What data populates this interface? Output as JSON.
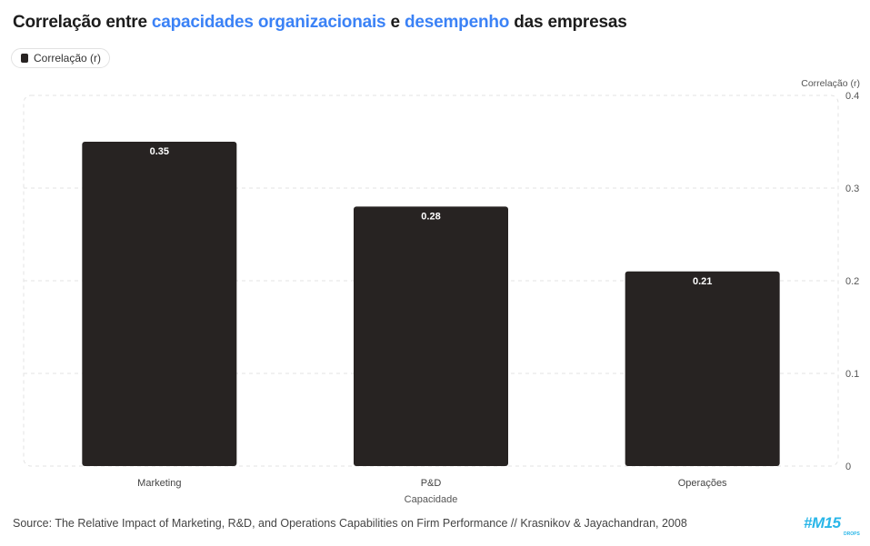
{
  "title": {
    "part1": "Correlação entre ",
    "highlight1": "capacidades organizacionais",
    "part2": " e ",
    "highlight2": "desempenho",
    "part3": " das empresas"
  },
  "legend": {
    "label": "Correlação (r)"
  },
  "source": "Source: The Relative Impact of Marketing, R&D, and Operations Capabilities on Firm Performance // Krasnikov & Jayachandran, 2008",
  "logo": {
    "text": "#M15",
    "sub": "DROPS"
  },
  "colors": {
    "bar": "#272322",
    "highlight": "#3b82f6",
    "grid": "#e3e3e3",
    "logo": "#29b6e8"
  },
  "chart_data": {
    "type": "bar",
    "categories": [
      "Marketing",
      "P&D",
      "Operações"
    ],
    "series": [
      {
        "name": "Correlação (r)",
        "values": [
          0.35,
          0.28,
          0.21
        ]
      }
    ],
    "value_labels": [
      "0.35",
      "0.28",
      "0.21"
    ],
    "xlabel": "Capacidade",
    "ylabel": "Correlação (r)",
    "ylim": [
      0,
      0.4
    ],
    "yticks": [
      0,
      0.1,
      0.2,
      0.3,
      0.4
    ],
    "ytick_labels": [
      "0",
      "0.1",
      "0.2",
      "0.3",
      "0.4"
    ],
    "y_axis_side": "right",
    "grid": true,
    "legend_position": "top-left"
  }
}
